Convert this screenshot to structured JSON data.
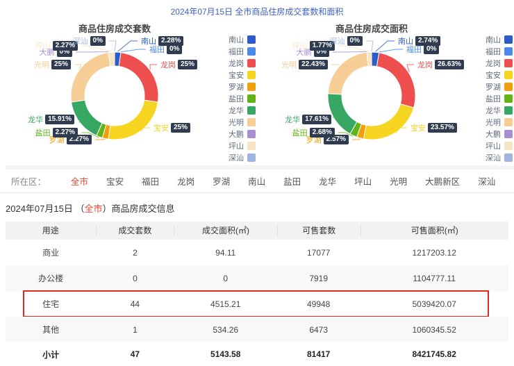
{
  "page_title": "2024年07月15日 全市商品住房成交套数和面积",
  "colors": {
    "title_blue": "#3d5fc9",
    "selected_red": "#f04134",
    "highlight_border_red": "#e3271d",
    "label_badge_bg": "#2f3b4e"
  },
  "districts": [
    {
      "key": "nanshan",
      "name": "南山",
      "color": "#2b5cc8"
    },
    {
      "key": "futian",
      "name": "福田",
      "color": "#4e88e8"
    },
    {
      "key": "longgang",
      "name": "龙岗",
      "color": "#ee4e4e"
    },
    {
      "key": "baoan",
      "name": "宝安",
      "color": "#f6d521"
    },
    {
      "key": "luohu",
      "name": "罗湖",
      "color": "#efa00b"
    },
    {
      "key": "yantian",
      "name": "盐田",
      "color": "#62b317"
    },
    {
      "key": "longhua",
      "name": "龙华",
      "color": "#37a863"
    },
    {
      "key": "guangming",
      "name": "光明",
      "color": "#f5cd95"
    },
    {
      "key": "dapeng",
      "name": "大鹏",
      "color": "#a88fd2"
    },
    {
      "key": "pingshan",
      "name": "坪山",
      "color": "#f6e4c3"
    },
    {
      "key": "shenshan",
      "name": "深汕",
      "color": "#a0b5e2"
    }
  ],
  "chart_data": [
    {
      "type": "pie",
      "title": "商品住房成交套数",
      "categories": [
        "南山",
        "福田",
        "龙岗",
        "宝安",
        "罗湖",
        "盐田",
        "龙华",
        "光明",
        "大鹏",
        "坪山",
        "深汕"
      ],
      "values": [
        2.28,
        0,
        25,
        25,
        2.27,
        2.27,
        15.91,
        25,
        0,
        2.27,
        0
      ],
      "percent_labels": [
        "2.28%",
        "0%",
        "25%",
        "25%",
        "2.27%",
        "2.27%",
        "15.91%",
        "25%",
        "0%",
        "2.27%",
        "0%"
      ],
      "legend_position": "right"
    },
    {
      "type": "pie",
      "title": "商品住房成交面积",
      "categories": [
        "南山",
        "福田",
        "龙岗",
        "宝安",
        "罗湖",
        "盐田",
        "龙华",
        "光明",
        "大鹏",
        "坪山",
        "深汕"
      ],
      "values": [
        2.74,
        0,
        26.63,
        23.57,
        2.57,
        2.68,
        17.61,
        22.43,
        0,
        1.77,
        0
      ],
      "percent_labels": [
        "2.74%",
        "0%",
        "26.63%",
        "23.57%",
        "2.57%",
        "2.68%",
        "17.61%",
        "22.43%",
        "0%",
        "1.77%",
        "0%"
      ],
      "legend_position": "right"
    }
  ],
  "filter": {
    "label": "所在区：",
    "selected": "全市",
    "options": [
      "全市",
      "宝安",
      "福田",
      "龙岗",
      "罗湖",
      "南山",
      "盐田",
      "龙华",
      "坪山",
      "光明",
      "大鹏新区",
      "深汕"
    ]
  },
  "table_section": {
    "title_prefix": "2024年07月15日 （",
    "title_highlight": "全市",
    "title_suffix": "）商品房成交信息"
  },
  "table": {
    "headers": [
      "用途",
      "成交套数",
      "成交面积(㎡)",
      "可售套数",
      "可售面积(㎡)"
    ],
    "rows": [
      {
        "cells": [
          "商业",
          "2",
          "94.11",
          "17077",
          "1217203.12"
        ],
        "highlight": false,
        "alt": false
      },
      {
        "cells": [
          "办公楼",
          "0",
          "0",
          "7919",
          "1104777.11"
        ],
        "highlight": false,
        "alt": true
      },
      {
        "cells": [
          "住宅",
          "44",
          "4515.21",
          "49948",
          "5039420.07"
        ],
        "highlight": true,
        "alt": false
      },
      {
        "cells": [
          "其他",
          "1",
          "534.26",
          "6473",
          "1060345.52"
        ],
        "highlight": false,
        "alt": true
      }
    ],
    "total_row": {
      "cells": [
        "小计",
        "47",
        "5143.58",
        "81417",
        "8421745.82"
      ]
    }
  }
}
